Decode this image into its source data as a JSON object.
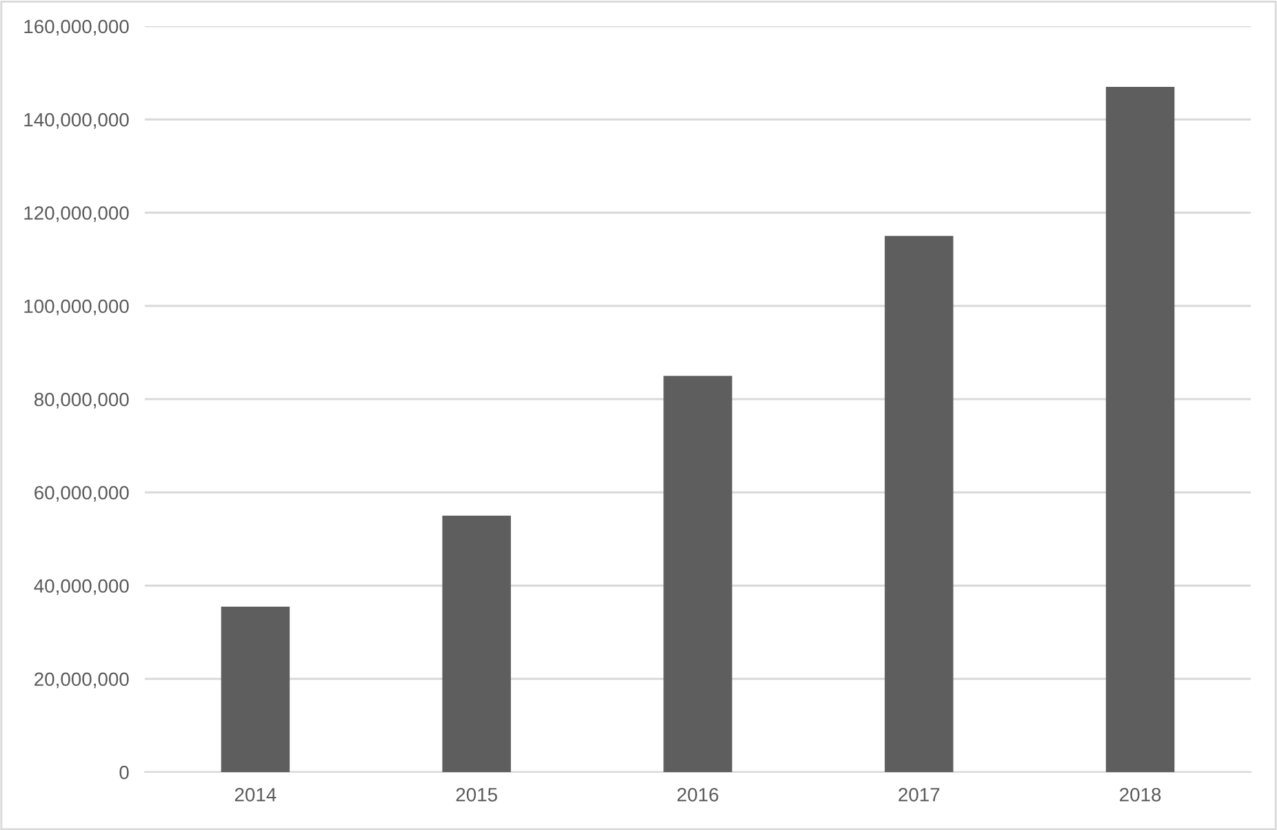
{
  "chart_data": {
    "type": "bar",
    "categories": [
      "2014",
      "2015",
      "2016",
      "2017",
      "2018"
    ],
    "values": [
      35500000,
      55000000,
      85000000,
      115000000,
      147000000
    ],
    "color": "#5e5e5e",
    "ylim": [
      0,
      160000000
    ],
    "yticks": [
      0,
      {
        "value": 20000000,
        "label": "20,000,000"
      },
      {
        "value": 40000000,
        "label": "40,000,000"
      },
      {
        "value": 60000000,
        "label": "60,000,000"
      },
      {
        "value": 80000000,
        "label": "80,000,000"
      },
      {
        "value": 100000000,
        "label": "100,000,000"
      },
      {
        "value": 120000000,
        "label": "120,000,000"
      },
      {
        "value": 140000000,
        "label": "140,000,000"
      },
      {
        "value": 160000000,
        "label": "160,000,000"
      }
    ],
    "grid": "y"
  }
}
